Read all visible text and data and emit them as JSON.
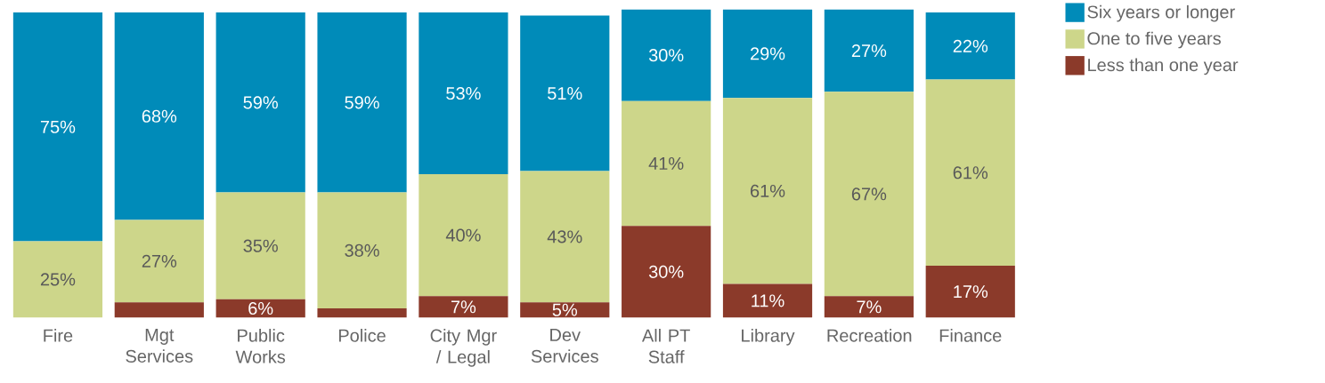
{
  "chart_data": {
    "type": "bar",
    "stacked": true,
    "legend": "top right",
    "categories": [
      "Fire",
      "Mgt Services",
      "Public Works",
      "Police",
      "City Mgr / Legal",
      "Dev Services",
      "All PT Staff",
      "Library",
      "Recreation",
      "Finance"
    ],
    "series": [
      {
        "name": "Less than one year",
        "color": "#8b3a2a",
        "values": [
          0,
          5,
          6,
          3,
          7,
          5,
          30,
          11,
          7,
          17
        ],
        "value_labels": [
          null,
          null,
          "6%",
          null,
          "7%",
          "5%",
          "30%",
          "11%",
          "7%",
          "17%"
        ]
      },
      {
        "name": "One to five years",
        "color": "#cdd68a",
        "values": [
          25,
          27,
          35,
          38,
          40,
          43,
          41,
          61,
          67,
          61
        ],
        "value_labels": [
          "25%",
          "27%",
          "35%",
          "38%",
          "40%",
          "43%",
          "41%",
          "61%",
          "67%",
          "61%"
        ]
      },
      {
        "name": "Six years or longer",
        "color": "#008bb9",
        "values": [
          75,
          68,
          59,
          59,
          53,
          51,
          30,
          29,
          27,
          22
        ],
        "value_labels": [
          "75%",
          "68%",
          "59%",
          "59%",
          "53%",
          "51%",
          "30%",
          "29%",
          "27%",
          "22%"
        ]
      }
    ]
  }
}
